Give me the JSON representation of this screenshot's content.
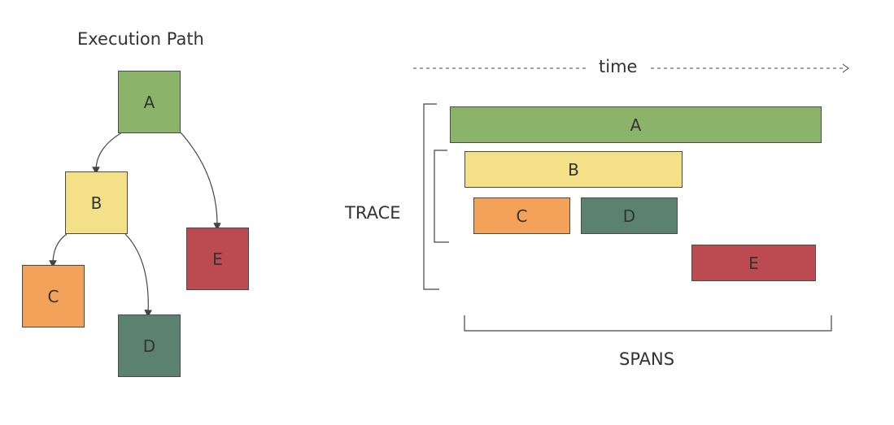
{
  "execution_path": {
    "title": "Execution Path",
    "nodes": [
      {
        "id": "A",
        "label": "A",
        "color": "#8bb46a"
      },
      {
        "id": "B",
        "label": "B",
        "color": "#f4e187"
      },
      {
        "id": "C",
        "label": "C",
        "color": "#f4a259"
      },
      {
        "id": "D",
        "label": "D",
        "color": "#5b8270"
      },
      {
        "id": "E",
        "label": "E",
        "color": "#bc4b51"
      }
    ]
  },
  "timeline": {
    "time_label": "time",
    "trace_label": "TRACE",
    "spans_label": "SPANS",
    "spans": [
      {
        "id": "A",
        "label": "A",
        "color": "#8bb46a"
      },
      {
        "id": "B",
        "label": "B",
        "color": "#f4e187"
      },
      {
        "id": "C",
        "label": "C",
        "color": "#f4a259"
      },
      {
        "id": "D",
        "label": "D",
        "color": "#5b8270"
      },
      {
        "id": "E",
        "label": "E",
        "color": "#bc4b51"
      }
    ]
  }
}
